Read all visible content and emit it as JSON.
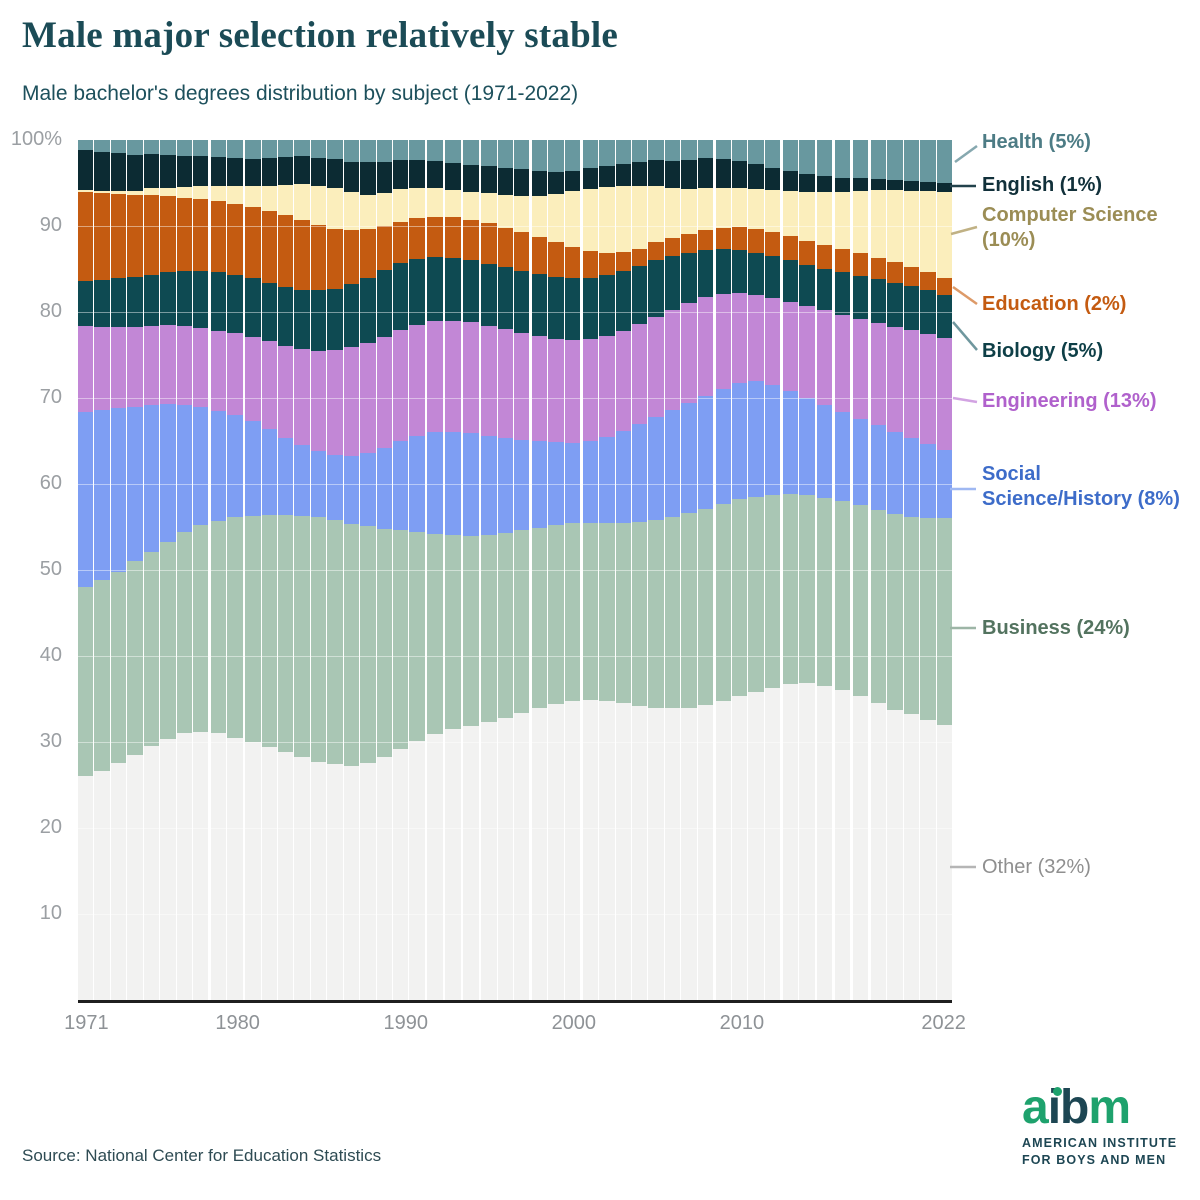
{
  "header": {
    "title": "Male major selection relatively stable",
    "subtitle": "Male bachelor's degrees distribution by subject (1971-2022)"
  },
  "chart_data": {
    "type": "bar",
    "stacked": true,
    "unit": "percent",
    "x_start_year": 1971,
    "x_end_year": 2022,
    "x": [
      1971,
      1972,
      1973,
      1974,
      1975,
      1976,
      1977,
      1978,
      1979,
      1980,
      1981,
      1982,
      1983,
      1984,
      1985,
      1986,
      1987,
      1988,
      1989,
      1990,
      1991,
      1992,
      1993,
      1994,
      1995,
      1996,
      1997,
      1998,
      1999,
      2000,
      2001,
      2002,
      2003,
      2004,
      2005,
      2006,
      2007,
      2008,
      2009,
      2010,
      2011,
      2012,
      2013,
      2014,
      2015,
      2016,
      2017,
      2018,
      2019,
      2020,
      2021,
      2022
    ],
    "x_tick_labels": [
      "1971",
      "1980",
      "1990",
      "2000",
      "2010",
      "2022"
    ],
    "x_tick_years": [
      1971,
      1980,
      1990,
      2000,
      2010,
      2022
    ],
    "y_ticks": [
      {
        "v": 100,
        "label": "100%"
      },
      {
        "v": 90,
        "label": "90"
      },
      {
        "v": 80,
        "label": "80"
      },
      {
        "v": 70,
        "label": "70"
      },
      {
        "v": 60,
        "label": "60"
      },
      {
        "v": 50,
        "label": "50"
      },
      {
        "v": 40,
        "label": "40"
      },
      {
        "v": 30,
        "label": "30"
      },
      {
        "v": 20,
        "label": "20"
      },
      {
        "v": 10,
        "label": "10"
      }
    ],
    "ylim": [
      0,
      100
    ],
    "grid": "horizontal-white",
    "legend_position": "right",
    "series": [
      {
        "name": "other",
        "label": "Other (32%)",
        "color": "#f2f2f1",
        "text_color": "#8f8f8f",
        "line_color": "#b5b5b5",
        "values": [
          26.0,
          26.6,
          27.5,
          28.5,
          29.5,
          30.4,
          31.0,
          31.2,
          31.0,
          30.5,
          30.0,
          29.4,
          28.8,
          28.2,
          27.7,
          27.4,
          27.2,
          27.5,
          28.3,
          29.2,
          30.1,
          30.9,
          31.5,
          31.9,
          32.3,
          32.8,
          33.4,
          33.9,
          34.4,
          34.8,
          34.9,
          34.8,
          34.5,
          34.2,
          34.0,
          33.9,
          34.0,
          34.3,
          34.8,
          35.3,
          35.8,
          36.3,
          36.7,
          36.8,
          36.5,
          36.0,
          35.3,
          34.5,
          33.8,
          33.2,
          32.6,
          32.0
        ]
      },
      {
        "name": "business",
        "label": "Business (24%)",
        "color": "#a9c6b4",
        "text_color": "#53735f",
        "line_color": "#9db5a6",
        "values": [
          22.0,
          22.2,
          22.3,
          22.5,
          22.6,
          22.9,
          23.4,
          24.0,
          24.7,
          25.6,
          26.3,
          27.0,
          27.6,
          28.1,
          28.4,
          28.4,
          28.2,
          27.6,
          26.5,
          25.4,
          24.3,
          23.3,
          22.6,
          22.1,
          21.8,
          21.5,
          21.2,
          21.0,
          20.8,
          20.6,
          20.6,
          20.7,
          21.0,
          21.4,
          21.8,
          22.2,
          22.6,
          22.8,
          22.9,
          22.9,
          22.7,
          22.4,
          22.1,
          21.9,
          21.9,
          22.0,
          22.2,
          22.5,
          22.8,
          23.0,
          23.4,
          24.0
        ]
      },
      {
        "name": "social-science-history",
        "label": "Social Science/History (8%)",
        "color": "#7e9ef3",
        "text_color": "#3d6cc9",
        "line_color": "#9fb8f2",
        "values": [
          20.4,
          19.8,
          19.0,
          18.0,
          17.1,
          16.0,
          14.8,
          13.7,
          12.8,
          11.9,
          11.0,
          10.0,
          9.0,
          8.2,
          7.7,
          7.6,
          7.9,
          8.5,
          9.4,
          10.4,
          11.2,
          11.8,
          12.0,
          11.9,
          11.5,
          11.0,
          10.5,
          10.1,
          9.7,
          9.4,
          9.5,
          10.0,
          10.7,
          11.4,
          12.0,
          12.5,
          12.8,
          13.1,
          13.3,
          13.5,
          13.5,
          12.8,
          12.0,
          11.3,
          10.8,
          10.4,
          10.1,
          9.8,
          9.5,
          9.2,
          8.7,
          8.0
        ]
      },
      {
        "name": "engineering",
        "label": "Engineering (13%)",
        "color": "#c287d6",
        "text_color": "#b061cc",
        "line_color": "#d2a3e2",
        "values": [
          10.0,
          9.7,
          9.4,
          9.3,
          9.2,
          9.2,
          9.2,
          9.2,
          9.3,
          9.5,
          9.8,
          10.2,
          10.7,
          11.2,
          11.7,
          12.2,
          12.6,
          12.8,
          12.9,
          12.9,
          12.9,
          12.9,
          12.9,
          12.9,
          12.8,
          12.7,
          12.5,
          12.2,
          12.0,
          11.9,
          11.8,
          11.7,
          11.6,
          11.6,
          11.6,
          11.6,
          11.6,
          11.5,
          11.1,
          10.5,
          10.0,
          10.1,
          10.4,
          10.7,
          11.0,
          11.3,
          11.6,
          11.9,
          12.2,
          12.5,
          12.7,
          13.0
        ]
      },
      {
        "name": "biology",
        "label": "Biology (5%)",
        "color": "#0e4a52",
        "text_color": "#0e3f47",
        "line_color": "#6f979e",
        "values": [
          5.2,
          5.4,
          5.7,
          5.8,
          5.9,
          6.1,
          6.4,
          6.7,
          6.8,
          6.8,
          6.8,
          6.8,
          6.8,
          6.9,
          7.0,
          7.1,
          7.3,
          7.6,
          7.8,
          7.8,
          7.7,
          7.5,
          7.3,
          7.2,
          7.2,
          7.2,
          7.2,
          7.2,
          7.2,
          7.2,
          7.2,
          7.1,
          7.0,
          6.8,
          6.6,
          6.3,
          5.9,
          5.5,
          5.2,
          5.0,
          4.9,
          4.9,
          4.8,
          4.8,
          4.8,
          4.9,
          5.0,
          5.1,
          5.1,
          5.1,
          5.1,
          5.0
        ]
      },
      {
        "name": "education",
        "label": "Education (2%)",
        "color": "#c45b11",
        "text_color": "#c45b11",
        "line_color": "#dd9a68",
        "values": [
          10.3,
          10.1,
          9.8,
          9.5,
          9.3,
          8.9,
          8.5,
          8.3,
          8.3,
          8.3,
          8.3,
          8.4,
          8.4,
          8.1,
          7.6,
          7.0,
          6.3,
          5.6,
          5.1,
          4.8,
          4.7,
          4.7,
          4.7,
          4.7,
          4.7,
          4.6,
          4.5,
          4.3,
          4.0,
          3.6,
          3.1,
          2.6,
          2.2,
          1.9,
          2.1,
          2.1,
          2.2,
          2.3,
          2.5,
          2.7,
          2.8,
          2.8,
          2.8,
          2.8,
          2.8,
          2.7,
          2.6,
          2.5,
          2.5,
          2.2,
          2.1,
          2.0
        ]
      },
      {
        "name": "computer-science",
        "label": "Computer Science (10%)",
        "color": "#fbeebc",
        "text_color": "#9b8d55",
        "line_color": "#c0b184",
        "values": [
          0.3,
          0.3,
          0.4,
          0.5,
          0.8,
          0.9,
          1.2,
          1.6,
          1.8,
          2.0,
          2.4,
          2.9,
          3.5,
          4.2,
          4.6,
          4.7,
          4.4,
          4.0,
          3.8,
          3.8,
          3.5,
          3.3,
          3.2,
          3.3,
          3.5,
          3.8,
          4.2,
          4.8,
          5.6,
          6.6,
          7.2,
          7.6,
          7.6,
          7.3,
          6.6,
          5.8,
          5.2,
          4.9,
          4.6,
          4.5,
          4.6,
          4.9,
          5.3,
          5.7,
          6.2,
          6.7,
          7.3,
          7.9,
          8.4,
          8.9,
          9.5,
          10.0
        ]
      },
      {
        "name": "english",
        "label": "English (1%)",
        "color": "#0c2b33",
        "text_color": "#11303a",
        "line_color": "#22424c",
        "values": [
          4.6,
          4.5,
          4.4,
          4.2,
          4.0,
          3.8,
          3.6,
          3.4,
          3.3,
          3.3,
          3.2,
          3.2,
          3.2,
          3.2,
          3.2,
          3.4,
          3.6,
          3.8,
          3.7,
          3.4,
          3.3,
          3.2,
          3.1,
          3.1,
          3.2,
          3.2,
          3.1,
          2.9,
          2.6,
          2.3,
          2.4,
          2.5,
          2.6,
          2.8,
          3.0,
          3.2,
          3.4,
          3.5,
          3.4,
          3.2,
          2.9,
          2.6,
          2.3,
          2.0,
          1.8,
          1.6,
          1.5,
          1.3,
          1.2,
          1.1,
          1.0,
          1.0
        ]
      },
      {
        "name": "health",
        "label": "Health (5%)",
        "color": "#68989f",
        "text_color": "#4d7c85",
        "line_color": "#86a8af",
        "values": [
          1.2,
          1.4,
          1.5,
          1.7,
          1.6,
          1.8,
          1.9,
          1.9,
          2.0,
          2.1,
          2.2,
          2.1,
          2.0,
          1.9,
          2.1,
          2.2,
          2.5,
          2.6,
          2.5,
          2.3,
          2.3,
          2.4,
          2.7,
          2.9,
          3.0,
          3.2,
          3.4,
          3.6,
          3.7,
          3.6,
          3.3,
          3.0,
          2.8,
          2.6,
          2.3,
          2.4,
          2.3,
          2.1,
          2.2,
          2.4,
          2.8,
          3.2,
          3.6,
          4.0,
          4.2,
          4.4,
          4.4,
          4.5,
          4.6,
          4.8,
          4.9,
          5.0
        ]
      }
    ]
  },
  "footer": {
    "source": "Source: National Center for Education Statistics",
    "logo": {
      "word_part1": "a",
      "word_part2": "ib",
      "word_part3": "m",
      "tagline_line1": "AMERICAN INSTITUTE",
      "tagline_line2": "FOR BOYS AND MEN",
      "green": "#1ea26d",
      "dark": "#1d4653"
    }
  }
}
